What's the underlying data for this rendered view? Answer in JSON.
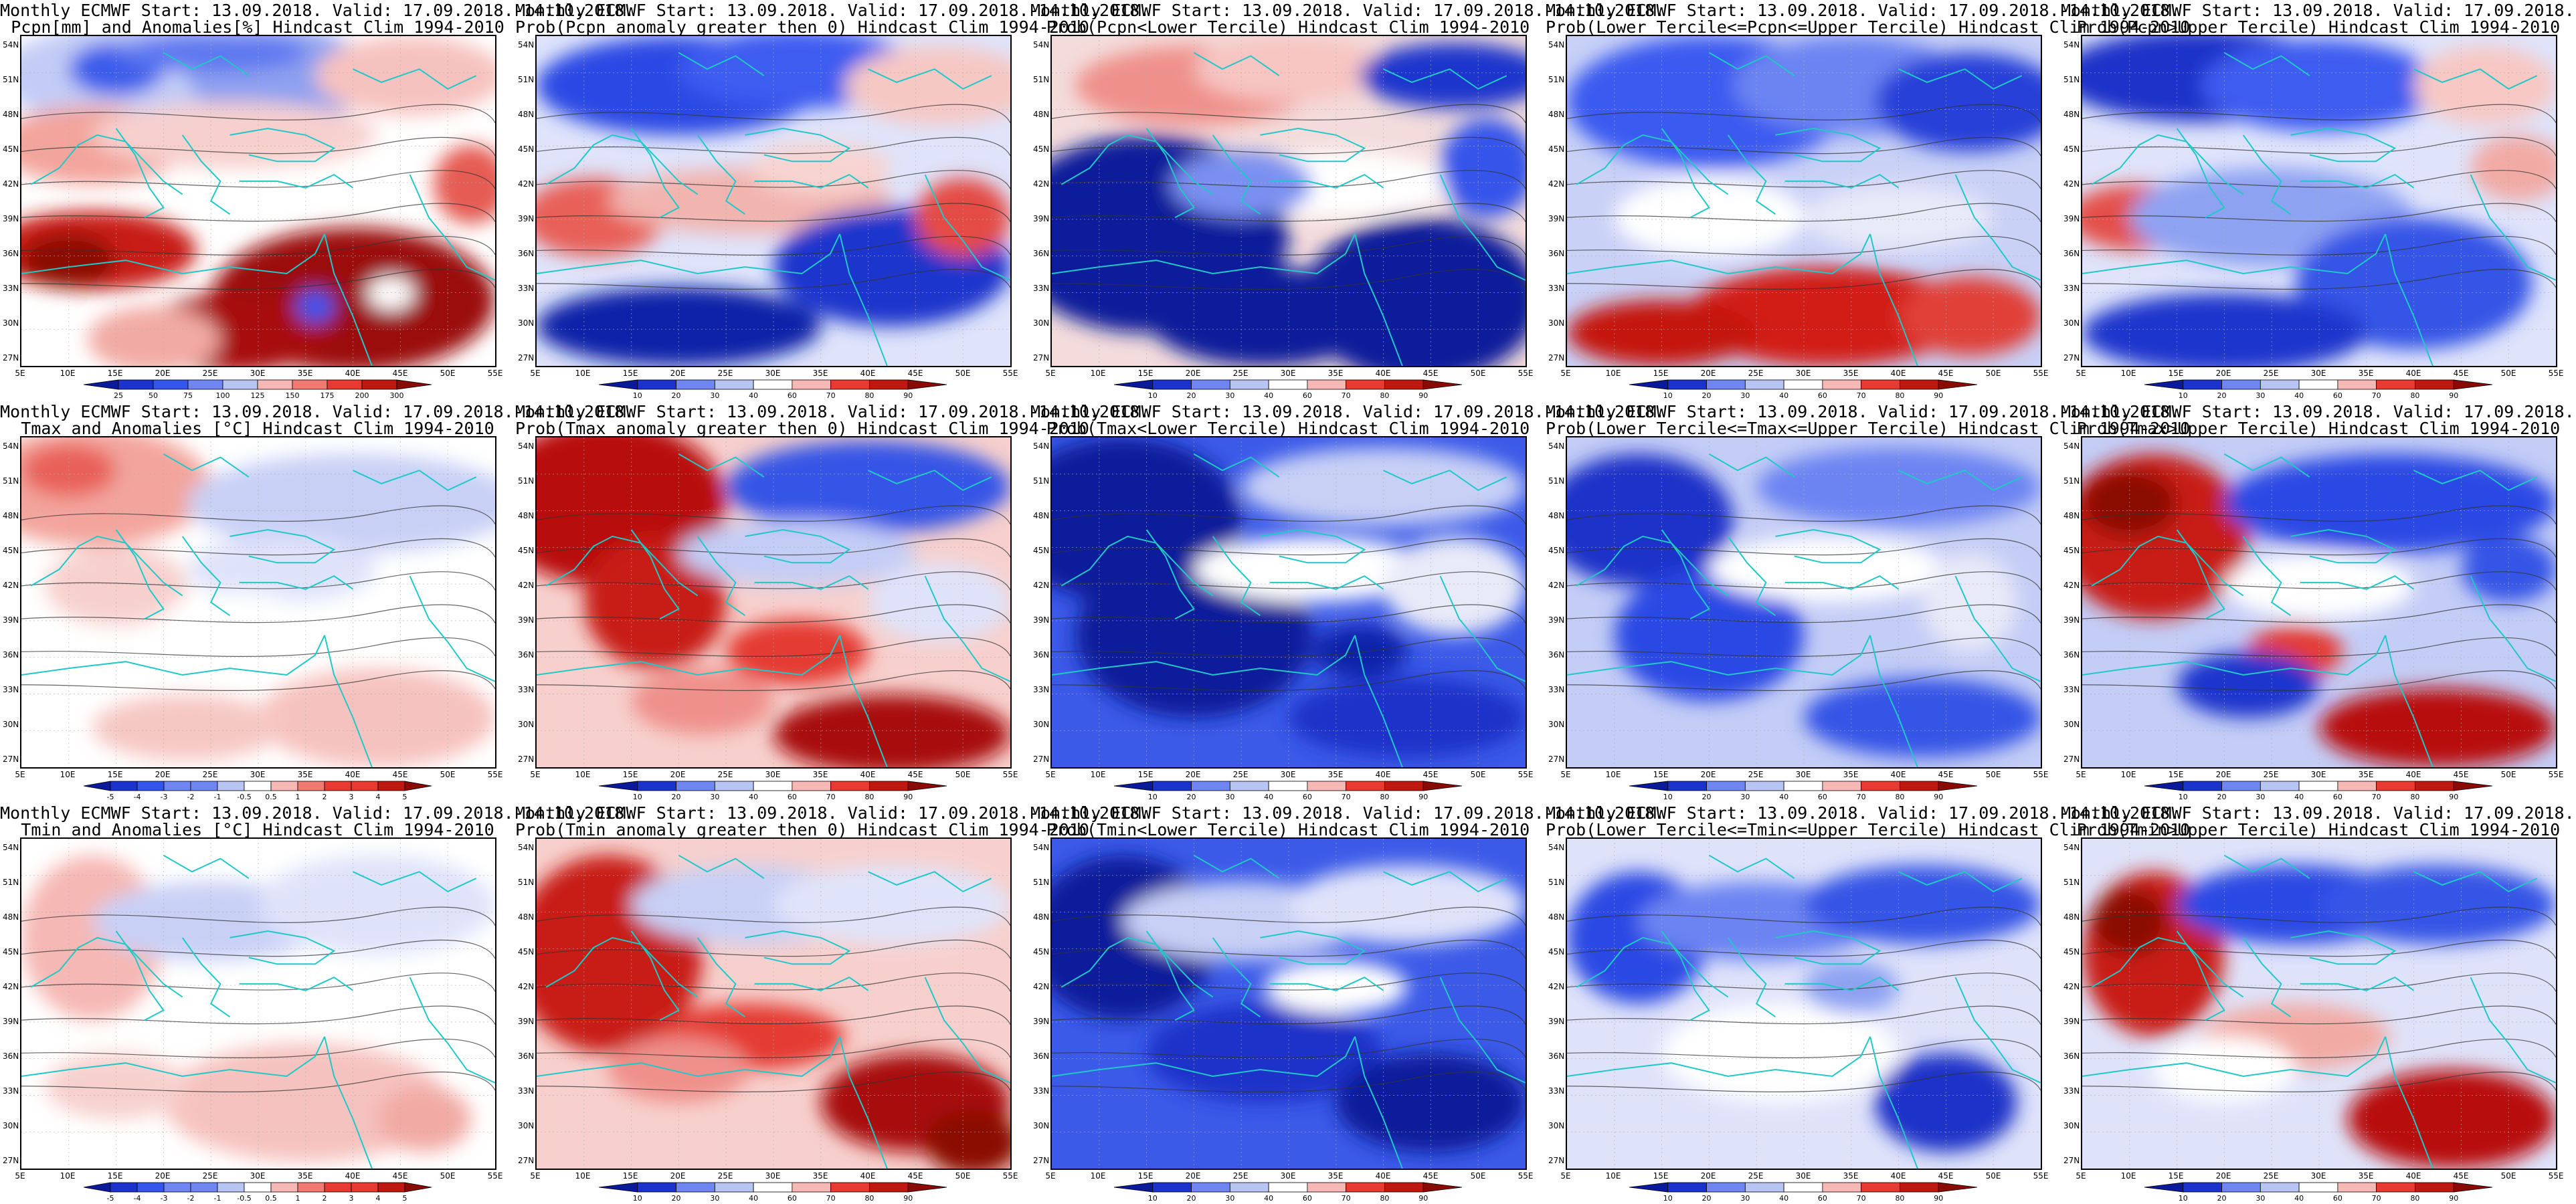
{
  "header": {
    "line1": "Monthly ECMWF Start: 13.09.2018. Valid: 17.09.2018.-14.10.2018."
  },
  "lat_labels": [
    "54N",
    "51N",
    "48N",
    "45N",
    "42N",
    "39N",
    "36N",
    "33N",
    "30N",
    "27N"
  ],
  "lon_labels": [
    "5E",
    "10E",
    "15E",
    "20E",
    "25E",
    "30E",
    "35E",
    "40E",
    "45E",
    "50E",
    "55E"
  ],
  "legends": {
    "pcpn_anom": [
      "25",
      "50",
      "75",
      "100",
      "125",
      "150",
      "175",
      "200",
      "300"
    ],
    "temp_anom": [
      "-5",
      "-4",
      "-3",
      "-2",
      "-1",
      "-0.5",
      "0.5",
      "1",
      "2",
      "3",
      "4",
      "5"
    ],
    "prob": [
      "10",
      "20",
      "30",
      "40",
      "60",
      "70",
      "80",
      "90"
    ]
  },
  "colors": {
    "deep_blue": "#0a1a9a",
    "mid_blue": "#3355ee",
    "light_blue": "#b8c4f4",
    "white": "#ffffff",
    "light_red": "#f6b8b4",
    "mid_red": "#e83a30",
    "deep_red": "#8a0a06",
    "coast": "#20c8c8",
    "contour": "#333333"
  },
  "panels": [
    {
      "id": "pcpn-anom",
      "title2": "Pcpn[mm] and Anomalies[%] Hindcast Clim 1994-2010",
      "legend": "pcpn_anom",
      "pattern": "pcpn_anom"
    },
    {
      "id": "pcpn-prob-gt0",
      "title2": "Prob(Pcpn anomaly greater then 0) Hindcast Clim 1994-2010",
      "legend": "prob",
      "pattern": "pcpn_gt0"
    },
    {
      "id": "pcpn-prob-lower",
      "title2": "Prob(Pcpn<Lower Tercile) Hindcast Clim 1994-2010",
      "legend": "prob",
      "pattern": "pcpn_lower"
    },
    {
      "id": "pcpn-prob-middle",
      "title2": "Prob(Lower Tercile<=Pcpn<=Upper Tercile) Hindcast Clim 1994-2010",
      "legend": "prob",
      "pattern": "pcpn_middle"
    },
    {
      "id": "pcpn-prob-upper",
      "title2": "Prob(Pcpn>Upper Tercile) Hindcast Clim 1994-2010",
      "legend": "prob",
      "pattern": "pcpn_upper"
    },
    {
      "id": "tmax-anom",
      "title2": "Tmax and Anomalies [°C] Hindcast Clim 1994-2010",
      "legend": "temp_anom",
      "pattern": "tmax_anom"
    },
    {
      "id": "tmax-prob-gt0",
      "title2": "Prob(Tmax anomaly greater then 0) Hindcast Clim 1994-2010",
      "legend": "prob",
      "pattern": "tmax_gt0"
    },
    {
      "id": "tmax-prob-lower",
      "title2": "Prob(Tmax<Lower Tercile) Hindcast Clim 1994-2010",
      "legend": "prob",
      "pattern": "tmax_lower"
    },
    {
      "id": "tmax-prob-middle",
      "title2": "Prob(Lower Tercile<=Tmax<=Upper Tercile) Hindcast Clim 1994-2010",
      "legend": "prob",
      "pattern": "tmax_middle"
    },
    {
      "id": "tmax-prob-upper",
      "title2": "Prob(Tmax>Upper Tercile) Hindcast Clim 1994-2010",
      "legend": "prob",
      "pattern": "tmax_upper"
    },
    {
      "id": "tmin-anom",
      "title2": "Tmin and Anomalies [°C] Hindcast Clim 1994-2010",
      "legend": "temp_anom",
      "pattern": "tmin_anom"
    },
    {
      "id": "tmin-prob-gt0",
      "title2": "Prob(Tmin anomaly greater then 0) Hindcast Clim 1994-2010",
      "legend": "prob",
      "pattern": "tmin_gt0"
    },
    {
      "id": "tmin-prob-lower",
      "title2": "Prob(Tmin<Lower Tercile) Hindcast Clim 1994-2010",
      "legend": "prob",
      "pattern": "tmin_lower"
    },
    {
      "id": "tmin-prob-middle",
      "title2": "Prob(Lower Tercile<=Tmin<=Upper Tercile) Hindcast Clim 1994-2010",
      "legend": "prob",
      "pattern": "tmin_middle"
    },
    {
      "id": "tmin-prob-upper",
      "title2": "Prob(Tmin>Upper Tercile) Hindcast Clim 1994-2010",
      "legend": "prob",
      "pattern": "tmin_upper"
    }
  ]
}
